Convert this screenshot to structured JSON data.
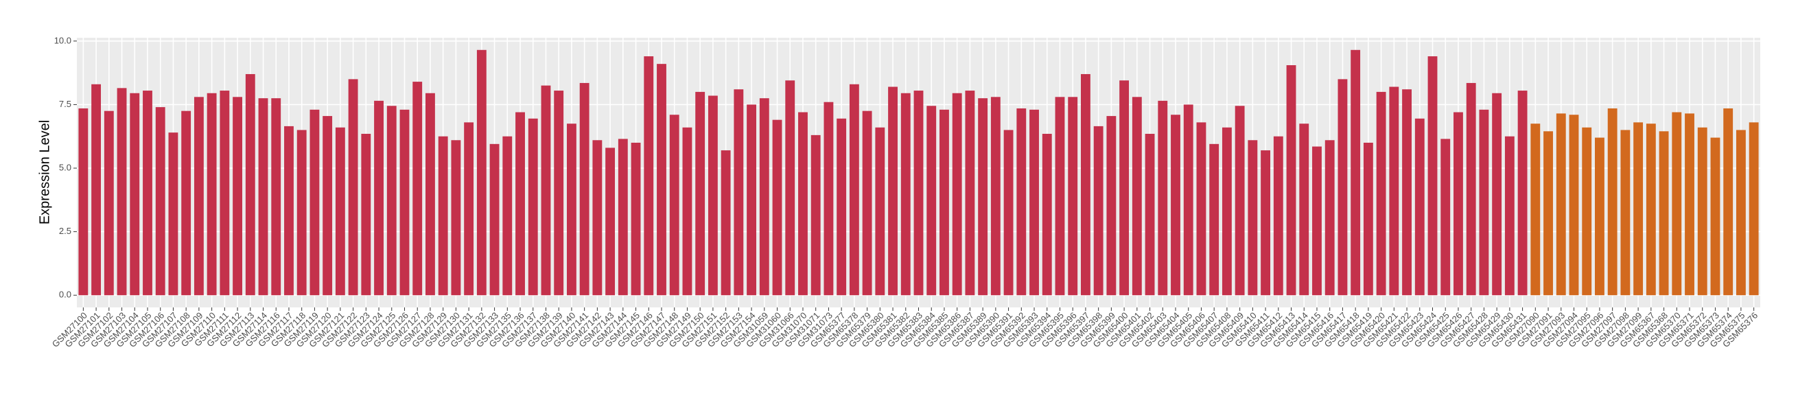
{
  "chart_data": {
    "type": "bar",
    "y_label": "Expression Level",
    "categories": [
      "GSM27100",
      "GSM27101",
      "GSM27102",
      "GSM27103",
      "GSM27104",
      "GSM27105",
      "GSM27106",
      "GSM27107",
      "GSM27108",
      "GSM27109",
      "GSM27110",
      "GSM27111",
      "GSM27112",
      "GSM27113",
      "GSM27114",
      "GSM27116",
      "GSM27117",
      "GSM27118",
      "GSM27119",
      "GSM27120",
      "GSM27121",
      "GSM27122",
      "GSM27123",
      "GSM27124",
      "GSM27125",
      "GSM27126",
      "GSM27127",
      "GSM27128",
      "GSM27129",
      "GSM27130",
      "GSM27131",
      "GSM27132",
      "GSM27133",
      "GSM27135",
      "GSM27136",
      "GSM27137",
      "GSM27138",
      "GSM27139",
      "GSM27140",
      "GSM27141",
      "GSM27142",
      "GSM27143",
      "GSM27144",
      "GSM27145",
      "GSM27146",
      "GSM27147",
      "GSM27148",
      "GSM27149",
      "GSM27150",
      "GSM27151",
      "GSM27152",
      "GSM27153",
      "GSM27154",
      "GSM31059",
      "GSM31060",
      "GSM31066",
      "GSM31070",
      "GSM31071",
      "GSM31073",
      "GSM65377",
      "GSM65378",
      "GSM65379",
      "GSM65380",
      "GSM65381",
      "GSM65382",
      "GSM65383",
      "GSM65384",
      "GSM65385",
      "GSM65386",
      "GSM65387",
      "GSM65389",
      "GSM65390",
      "GSM65391",
      "GSM65392",
      "GSM65393",
      "GSM65394",
      "GSM65395",
      "GSM65396",
      "GSM65397",
      "GSM65398",
      "GSM65399",
      "GSM65400",
      "GSM65401",
      "GSM65402",
      "GSM65403",
      "GSM65404",
      "GSM65405",
      "GSM65406",
      "GSM65407",
      "GSM65408",
      "GSM65409",
      "GSM65410",
      "GSM65411",
      "GSM65412",
      "GSM65413",
      "GSM65414",
      "GSM65415",
      "GSM65416",
      "GSM65417",
      "GSM65418",
      "GSM65419",
      "GSM65420",
      "GSM65421",
      "GSM65422",
      "GSM65423",
      "GSM65424",
      "GSM65425",
      "GSM65426",
      "GSM65427",
      "GSM65428",
      "GSM65429",
      "GSM65430",
      "GSM65431",
      "GSM27090",
      "GSM27091",
      "GSM27093",
      "GSM27094",
      "GSM27095",
      "GSM27096",
      "GSM27097",
      "GSM27098",
      "GSM27099",
      "GSM65367",
      "GSM65368",
      "GSM65370",
      "GSM65371",
      "GSM65372",
      "GSM65373",
      "GSM65374",
      "GSM65375",
      "GSM65376"
    ],
    "values": [
      7.35,
      8.3,
      7.25,
      8.15,
      7.95,
      8.05,
      7.4,
      6.4,
      7.25,
      7.8,
      7.95,
      8.05,
      7.8,
      8.7,
      7.75,
      7.75,
      6.65,
      6.5,
      7.3,
      7.05,
      6.6,
      8.5,
      6.35,
      7.65,
      7.45,
      7.3,
      8.4,
      7.95,
      6.25,
      6.1,
      6.8,
      9.65,
      5.95,
      6.25,
      7.2,
      6.95,
      8.25,
      8.05,
      6.75,
      8.35,
      6.1,
      5.8,
      6.15,
      6.0,
      9.4,
      9.1,
      7.1,
      6.6,
      8.0,
      7.85,
      5.7,
      8.1,
      7.5,
      7.75,
      6.9,
      8.45,
      7.2,
      6.3,
      7.6,
      6.95,
      8.3,
      7.25,
      6.6,
      8.2,
      7.95,
      8.05,
      7.45,
      7.3,
      7.95,
      8.05,
      7.75,
      7.8,
      6.5,
      7.35,
      7.3,
      6.35,
      7.8,
      7.8,
      8.7,
      6.65,
      7.05,
      8.45,
      7.8,
      6.35,
      7.65,
      7.1,
      7.5,
      6.8,
      5.95,
      6.6,
      7.45,
      6.1,
      5.7,
      6.25,
      9.05,
      6.75,
      5.85,
      6.1,
      8.5,
      9.65,
      6.0,
      8.0,
      8.2,
      8.1,
      6.95,
      9.4,
      6.15,
      7.2,
      8.35,
      7.3,
      7.95,
      6.25,
      8.05,
      6.75,
      6.45,
      7.15,
      7.1,
      6.6,
      6.2,
      7.35,
      6.5,
      6.8,
      6.75,
      6.45,
      7.2,
      7.15,
      6.6,
      6.2,
      7.35,
      6.5,
      6.8
    ],
    "colors": [
      "#c4314b",
      "#c4314b",
      "#c4314b",
      "#c4314b",
      "#c4314b",
      "#c4314b",
      "#c4314b",
      "#c4314b",
      "#c4314b",
      "#c4314b",
      "#c4314b",
      "#c4314b",
      "#c4314b",
      "#c4314b",
      "#c4314b",
      "#c4314b",
      "#c4314b",
      "#c4314b",
      "#c4314b",
      "#c4314b",
      "#c4314b",
      "#c4314b",
      "#c4314b",
      "#c4314b",
      "#c4314b",
      "#c4314b",
      "#c4314b",
      "#c4314b",
      "#c4314b",
      "#c4314b",
      "#c4314b",
      "#c4314b",
      "#c4314b",
      "#c4314b",
      "#c4314b",
      "#c4314b",
      "#c4314b",
      "#c4314b",
      "#c4314b",
      "#c4314b",
      "#c4314b",
      "#c4314b",
      "#c4314b",
      "#c4314b",
      "#c4314b",
      "#c4314b",
      "#c4314b",
      "#c4314b",
      "#c4314b",
      "#c4314b",
      "#c4314b",
      "#c4314b",
      "#c4314b",
      "#c4314b",
      "#c4314b",
      "#c4314b",
      "#c4314b",
      "#c4314b",
      "#c4314b",
      "#c4314b",
      "#c4314b",
      "#c4314b",
      "#c4314b",
      "#c4314b",
      "#c4314b",
      "#c4314b",
      "#c4314b",
      "#c4314b",
      "#c4314b",
      "#c4314b",
      "#c4314b",
      "#c4314b",
      "#c4314b",
      "#c4314b",
      "#c4314b",
      "#c4314b",
      "#c4314b",
      "#c4314b",
      "#c4314b",
      "#c4314b",
      "#c4314b",
      "#c4314b",
      "#c4314b",
      "#c4314b",
      "#c4314b",
      "#c4314b",
      "#c4314b",
      "#c4314b",
      "#c4314b",
      "#c4314b",
      "#c4314b",
      "#c4314b",
      "#c4314b",
      "#c4314b",
      "#c4314b",
      "#c4314b",
      "#c4314b",
      "#c4314b",
      "#c4314b",
      "#c4314b",
      "#c4314b",
      "#c4314b",
      "#c4314b",
      "#c4314b",
      "#c4314b",
      "#c4314b",
      "#c4314b",
      "#c4314b",
      "#c4314b",
      "#c4314b",
      "#c4314b",
      "#c4314b",
      "#c4314b",
      "#d2691e",
      "#d2691e",
      "#d2691e",
      "#d2691e",
      "#d2691e",
      "#d2691e",
      "#d2691e",
      "#d2691e",
      "#d2691e",
      "#d2691e",
      "#d2691e",
      "#d2691e",
      "#d2691e",
      "#d2691e",
      "#d2691e",
      "#d2691e",
      "#d2691e",
      "#d2691e"
    ],
    "ylim": [
      -0.48,
      10.13
    ],
    "yticks": [
      {
        "value": 0,
        "label": "0.0"
      },
      2.5,
      {
        "value": 5,
        "label": "5.0"
      },
      7.5,
      {
        "value": 10,
        "label": "10.0"
      }
    ],
    "grid": true
  }
}
